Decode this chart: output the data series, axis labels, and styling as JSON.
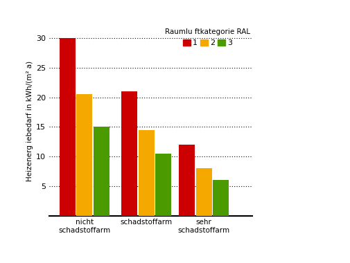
{
  "categories": [
    "nicht\nschadstoffarm",
    "schadstoffarm",
    "sehr\nschadstoffarm"
  ],
  "series_labels": [
    "1",
    "2",
    "3"
  ],
  "series_colors": [
    "#cc0000",
    "#f5a800",
    "#4a9a00"
  ],
  "values": [
    [
      30,
      20.5,
      15
    ],
    [
      21,
      14.5,
      10.5
    ],
    [
      12,
      8,
      6
    ]
  ],
  "ylabel": "Heizenerg iebedarf in kWh/(m² a)",
  "ylim": [
    0,
    32
  ],
  "yticks": [
    5,
    10,
    15,
    20,
    25,
    30
  ],
  "legend_title": "Raumlu ftkategorie RAL",
  "background_color": "#ffffff",
  "bar_width": 0.18,
  "group_positions": [
    0.3,
    1.0,
    1.65
  ]
}
